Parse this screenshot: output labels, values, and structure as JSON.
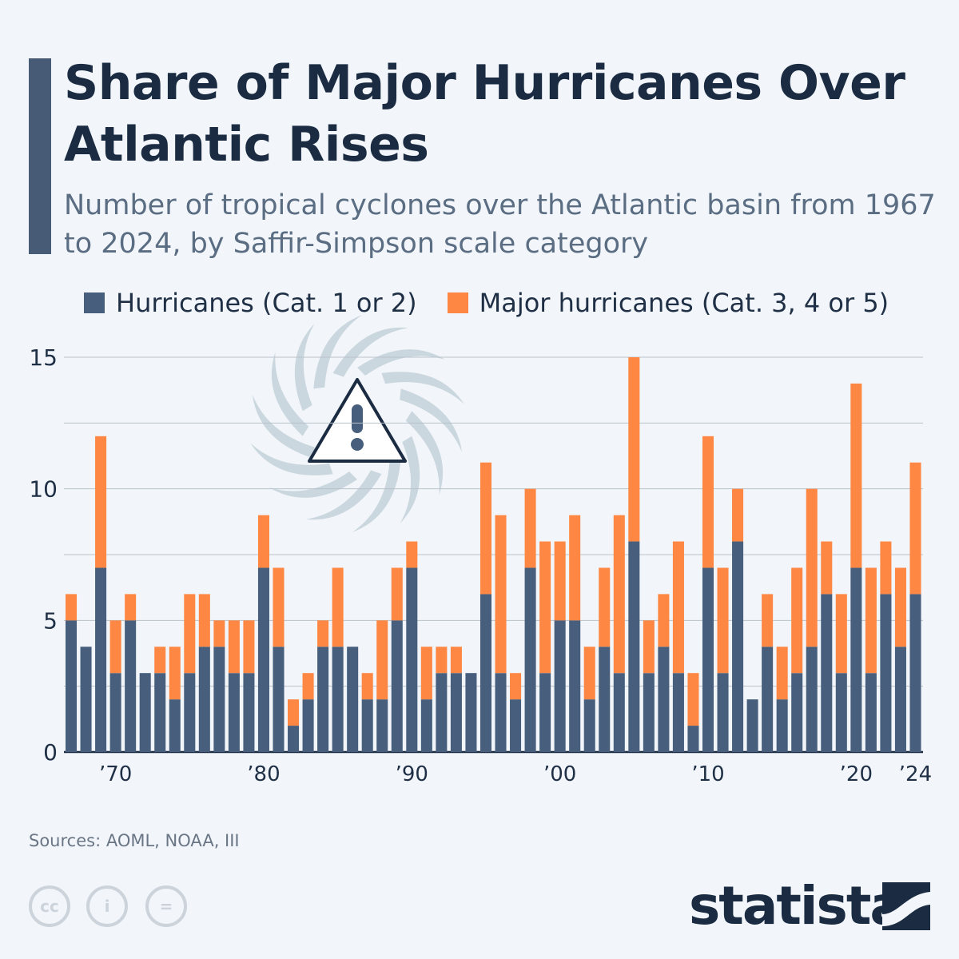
{
  "header": {
    "title": "Share of Major Hurricanes Over Atlantic Rises",
    "subtitle": "Number of tropical cyclones over the Atlantic basin from 1967 to 2024, by Saffir-Simpson scale category"
  },
  "footer": {
    "source": "Sources: AOML, NOAA, III",
    "brand": "statista",
    "license_icons": [
      "cc-icon",
      "attribution-icon",
      "no-derivatives-icon"
    ]
  },
  "colors": {
    "hurricanes": "#475f7c",
    "major": "#fd8743",
    "title": "#1a2b42"
  },
  "chart_data": {
    "type": "bar",
    "stacked": true,
    "title": "Share of Major Hurricanes Over Atlantic Rises",
    "xlabel": "",
    "ylabel": "",
    "ylim": [
      0,
      15
    ],
    "yticks": [
      0,
      5,
      10,
      15
    ],
    "grid": true,
    "legend": "top",
    "xtick_labels": [
      {
        "year": 1970,
        "label": "’70"
      },
      {
        "year": 1980,
        "label": "’80"
      },
      {
        "year": 1990,
        "label": "’90"
      },
      {
        "year": 2000,
        "label": "’00"
      },
      {
        "year": 2010,
        "label": "’10"
      },
      {
        "year": 2020,
        "label": "’20"
      },
      {
        "year": 2024,
        "label": "’24"
      }
    ],
    "categories": [
      1967,
      1968,
      1969,
      1970,
      1971,
      1972,
      1973,
      1974,
      1975,
      1976,
      1977,
      1978,
      1979,
      1980,
      1981,
      1982,
      1983,
      1984,
      1985,
      1986,
      1987,
      1988,
      1989,
      1990,
      1991,
      1992,
      1993,
      1994,
      1995,
      1996,
      1997,
      1998,
      1999,
      2000,
      2001,
      2002,
      2003,
      2004,
      2005,
      2006,
      2007,
      2008,
      2009,
      2010,
      2011,
      2012,
      2013,
      2014,
      2015,
      2016,
      2017,
      2018,
      2019,
      2020,
      2021,
      2022,
      2023,
      2024
    ],
    "series": [
      {
        "name": "Hurricanes (Cat. 1 or 2)",
        "values": [
          5,
          4,
          7,
          3,
          5,
          3,
          3,
          2,
          3,
          4,
          4,
          3,
          3,
          7,
          4,
          1,
          2,
          4,
          4,
          4,
          2,
          2,
          5,
          7,
          2,
          3,
          3,
          3,
          6,
          3,
          2,
          7,
          3,
          5,
          5,
          2,
          4,
          3,
          8,
          3,
          4,
          3,
          1,
          7,
          3,
          8,
          2,
          4,
          2,
          3,
          4,
          6,
          3,
          7,
          3,
          6,
          4,
          6
        ]
      },
      {
        "name": "Major hurricanes (Cat. 3, 4 or 5)",
        "values": [
          1,
          0,
          5,
          2,
          1,
          0,
          1,
          2,
          3,
          2,
          1,
          2,
          2,
          2,
          3,
          1,
          1,
          1,
          3,
          0,
          1,
          3,
          2,
          1,
          2,
          1,
          1,
          0,
          5,
          6,
          1,
          3,
          5,
          3,
          4,
          2,
          3,
          6,
          7,
          2,
          2,
          5,
          2,
          5,
          4,
          2,
          0,
          2,
          2,
          4,
          6,
          2,
          3,
          7,
          4,
          2,
          3,
          5
        ]
      }
    ]
  }
}
